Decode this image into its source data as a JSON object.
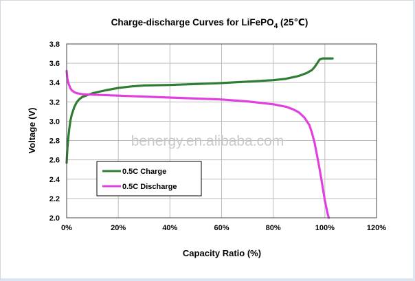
{
  "chart_data": {
    "type": "line",
    "title": "Charge-discharge Curves  for  LiFePO",
    "title_subscript": "4",
    "title_suffix": "  (25℃)",
    "xlabel": "Capacity Ratio (%)",
    "ylabel": "Voltage  (V)",
    "xlim": [
      0,
      120
    ],
    "ylim": [
      2.0,
      3.8
    ],
    "x_ticks": [
      0,
      20,
      40,
      60,
      80,
      100,
      120
    ],
    "x_tick_labels": [
      "0%",
      "20%",
      "40%",
      "60%",
      "80%",
      "100%",
      "120%"
    ],
    "y_ticks": [
      2.0,
      2.2,
      2.4,
      2.6,
      2.8,
      3.0,
      3.2,
      3.4,
      3.6,
      3.8
    ],
    "y_tick_labels": [
      "2.0",
      "2.2",
      "2.4",
      "2.6",
      "2.8",
      "3.0",
      "3.2",
      "3.4",
      "3.6",
      "3.8"
    ],
    "grid": true,
    "legend_position": "lower-left",
    "watermark": "benergy.en.alibaba.com",
    "series": [
      {
        "name": "0.5C Charge",
        "color": "#2e7d32",
        "x": [
          0,
          0.3,
          0.6,
          1,
          1.5,
          2,
          3,
          4,
          5,
          6,
          8,
          10,
          15,
          20,
          25,
          30,
          40,
          50,
          60,
          70,
          80,
          85,
          90,
          93,
          95,
          96,
          97,
          98,
          99,
          100,
          101,
          103
        ],
        "y": [
          2.57,
          2.72,
          2.82,
          2.92,
          3.01,
          3.07,
          3.15,
          3.2,
          3.23,
          3.25,
          3.27,
          3.29,
          3.32,
          3.345,
          3.36,
          3.37,
          3.375,
          3.385,
          3.395,
          3.41,
          3.425,
          3.44,
          3.47,
          3.5,
          3.53,
          3.56,
          3.6,
          3.64,
          3.65,
          3.65,
          3.65,
          3.65
        ]
      },
      {
        "name": "0.5C Discharge",
        "color": "#e040e0",
        "x": [
          0,
          0.3,
          0.6,
          1,
          1.5,
          2,
          3,
          4,
          6,
          10,
          20,
          30,
          40,
          50,
          60,
          70,
          80,
          85,
          88,
          90,
          92,
          94,
          95,
          96,
          97,
          98,
          99,
          100,
          101,
          101.5
        ],
        "y": [
          3.52,
          3.44,
          3.4,
          3.37,
          3.34,
          3.32,
          3.3,
          3.29,
          3.28,
          3.275,
          3.265,
          3.255,
          3.245,
          3.235,
          3.225,
          3.205,
          3.175,
          3.15,
          3.12,
          3.09,
          3.04,
          2.96,
          2.88,
          2.78,
          2.64,
          2.5,
          2.34,
          2.18,
          2.05,
          2.0
        ]
      }
    ]
  }
}
